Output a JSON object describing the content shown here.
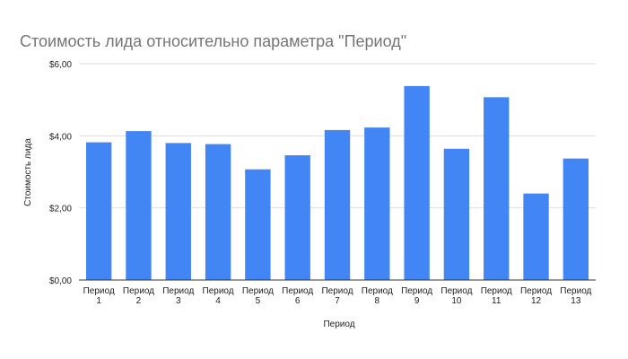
{
  "chart_data": {
    "type": "bar",
    "title": "Стоимость лида относительно параметра \"Период\"",
    "xlabel": "Период",
    "ylabel": "Стоимость лида",
    "categories": [
      [
        "Период",
        "1"
      ],
      [
        "Период",
        "2"
      ],
      [
        "Период",
        "3"
      ],
      [
        "Период",
        "4"
      ],
      [
        "Период",
        "5"
      ],
      [
        "Период",
        "6"
      ],
      [
        "Период",
        "7"
      ],
      [
        "Период",
        "8"
      ],
      [
        "Период",
        "9"
      ],
      [
        "Период",
        "10"
      ],
      [
        "Период",
        "11"
      ],
      [
        "Период",
        "12"
      ],
      [
        "Период",
        "13"
      ]
    ],
    "values": [
      3.82,
      4.13,
      3.8,
      3.77,
      3.07,
      3.46,
      4.16,
      4.23,
      5.38,
      3.64,
      5.07,
      2.4,
      3.37
    ],
    "ylim": [
      0,
      6
    ],
    "yticks": [
      0,
      2,
      4,
      6
    ],
    "ytick_labels": [
      "$0,00",
      "$2,00",
      "$4,00",
      "$6,00"
    ],
    "bar_color": "#4285f4",
    "grid": true
  }
}
